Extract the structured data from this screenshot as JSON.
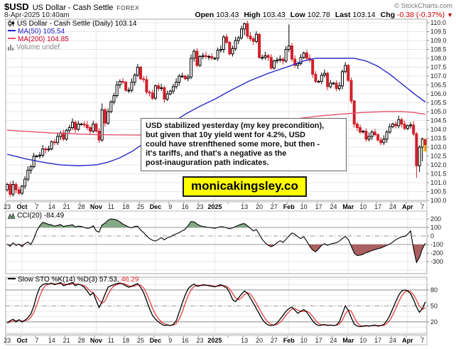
{
  "header": {
    "symbol": "$USD",
    "name": "US Dollar - Cash Settle",
    "exchange": "FOREX",
    "copyright": "© StockCharts.com",
    "datetime": "8-Apr-2025 10:40am",
    "open_label": "Open",
    "open": "103.43",
    "high_label": "High",
    "high": "103.43",
    "low_label": "Low",
    "low": "102.78",
    "last_label": "Last",
    "last": "103.14",
    "chg_label": "Chg",
    "chg": "-0.38 (-0.37%)",
    "chg_arrow": "▼"
  },
  "price_legend": {
    "title": "US Dollar - Cash Settle (Daily) 103.14",
    "ma50": "MA(50) 105.54",
    "ma200": "MA(200) 104.85",
    "volume": "Volume undef"
  },
  "cci_legend": {
    "text": "CCI(20) -84.49"
  },
  "sto_legend": {
    "black": "Slow STO %K(14) %D(3) 57.53,",
    "red": "46.29"
  },
  "annotation": {
    "lines": [
      "USD stabilized yesterday (my key precondition),",
      "but given that 10y yield went for 4.2%, USD",
      "could have strenfthened some more, but then -",
      "it's tariffs, and that's a negative as the",
      "post-inauguration path indicates."
    ]
  },
  "watermark": {
    "text": "monicakingsley.co"
  },
  "colors": {
    "candle_up": "#ffffff",
    "candle_down": "#d1202b",
    "ma50": "#2a2ac8",
    "ma50_text": "#2222cc",
    "ma200_line": "#e0556d",
    "ma200_text": "#cc0022",
    "cci_fill_above": "#85a885",
    "cci_fill_below": "#aa6060",
    "cci_line": "#000000",
    "sto_k": "#000000",
    "sto_d": "#e83030",
    "chg_negative": "#cc0000",
    "watermark_bg": "#ffff00",
    "last_bar_highlight": "#ffdd22",
    "grid": "#e7e7ec",
    "grid_strong": "#999999",
    "panel_border": "#aaaaaa",
    "axis_text": "#222222"
  },
  "chart_data": [
    {
      "type": "candlestick",
      "title": "US Dollar - Cash Settle (Daily)",
      "last_close": 103.14,
      "ylim": [
        100.0,
        110.0
      ],
      "ytick_step": 0.5,
      "first_open": 100.6,
      "x_week_labels": [
        {
          "w": 0,
          "t": "23"
        },
        {
          "w": 1,
          "t": "Oct",
          "b": 1
        },
        {
          "w": 2,
          "t": "7"
        },
        {
          "w": 3,
          "t": "14"
        },
        {
          "w": 4,
          "t": "21"
        },
        {
          "w": 5,
          "t": "28"
        },
        {
          "w": 6,
          "t": "Nov",
          "b": 1
        },
        {
          "w": 7,
          "t": "11"
        },
        {
          "w": 8,
          "t": "18"
        },
        {
          "w": 9,
          "t": "25"
        },
        {
          "w": 10,
          "t": "Dec",
          "b": 1
        },
        {
          "w": 11,
          "t": "9"
        },
        {
          "w": 12,
          "t": "16"
        },
        {
          "w": 13,
          "t": "23"
        },
        {
          "w": 14,
          "t": "2025",
          "b": 1
        },
        {
          "w": 16,
          "t": "13"
        },
        {
          "w": 17,
          "t": "20"
        },
        {
          "w": 18,
          "t": "27"
        },
        {
          "w": 19,
          "t": "Feb",
          "b": 1
        },
        {
          "w": 20,
          "t": "10"
        },
        {
          "w": 21,
          "t": "17"
        },
        {
          "w": 22,
          "t": "24"
        },
        {
          "w": 23,
          "t": "Mar",
          "b": 1
        },
        {
          "w": 24,
          "t": "10"
        },
        {
          "w": 25,
          "t": "17"
        },
        {
          "w": 26,
          "t": "24"
        },
        {
          "w": 27,
          "t": "Apr",
          "b": 1
        },
        {
          "w": 28,
          "t": "7"
        }
      ],
      "month_grid_weeks": [
        1,
        6,
        10,
        14,
        19,
        23,
        27
      ],
      "closes": [
        100.9,
        100.35,
        100.9,
        100.6,
        100.4,
        100.8,
        101.2,
        101.7,
        101.9,
        102.5,
        102.5,
        102.55,
        102.9,
        102.85,
        102.9,
        103.3,
        103.25,
        103.6,
        103.8,
        103.45,
        103.95,
        104.1,
        104.4,
        104.0,
        104.3,
        104.3,
        104.25,
        104.1,
        103.9,
        104.3,
        103.9,
        103.4,
        105.1,
        104.35,
        105.0,
        105.55,
        105.9,
        106.5,
        106.7,
        106.65,
        106.2,
        106.2,
        106.65,
        107.05,
        107.5,
        106.85,
        106.8,
        106.1,
        106.05,
        105.75,
        106.45,
        106.3,
        106.35,
        105.7,
        106.0,
        106.15,
        106.4,
        106.65,
        107.0,
        107.0,
        106.85,
        106.95,
        108.0,
        108.4,
        107.6,
        108.1,
        108.15,
        108.1,
        108.1,
        108.0,
        108.0,
        108.45,
        108.5,
        109.2,
        108.9,
        108.25,
        108.55,
        109.0,
        109.15,
        109.65,
        109.95,
        109.25,
        109.1,
        108.95,
        109.35,
        108.05,
        108.05,
        108.15,
        108.05,
        107.45,
        107.85,
        107.9,
        107.95,
        107.85,
        108.5,
        108.7,
        107.95,
        107.6,
        107.7,
        108.05,
        108.3,
        108.0,
        107.9,
        107.1,
        106.7,
        106.7,
        107.05,
        107.15,
        106.4,
        106.6,
        106.6,
        106.3,
        106.45,
        107.25,
        107.6,
        106.75,
        105.6,
        104.3,
        104.1,
        103.85,
        103.9,
        103.45,
        103.6,
        103.85,
        103.7,
        103.4,
        103.25,
        103.45,
        103.85,
        104.15,
        104.3,
        104.2,
        104.55,
        104.3,
        104.05,
        104.2,
        104.25,
        103.75,
        101.95,
        103.0,
        103.45,
        103.14
      ],
      "ohlc_overrides": {
        "32": [
          103.4,
          105.45,
          103.3,
          105.1
        ],
        "80": [
          109.65,
          110.0,
          109.3,
          109.95
        ],
        "95": [
          108.5,
          109.9,
          108.35,
          108.7
        ],
        "117": [
          105.6,
          105.65,
          104.1,
          104.3
        ],
        "138": [
          103.75,
          103.85,
          101.27,
          101.95
        ],
        "139": [
          101.95,
          103.1,
          101.6,
          103.0
        ],
        "140": [
          103.0,
          103.55,
          102.2,
          103.45
        ],
        "141": [
          103.43,
          103.43,
          102.78,
          103.14
        ]
      },
      "highlight_last_bar": true,
      "ma50_value": 105.54,
      "ma200_value": 104.85,
      "ma50_points": [
        [
          0,
          102.6
        ],
        [
          6,
          102.35
        ],
        [
          12,
          102.15
        ],
        [
          18,
          102.0
        ],
        [
          24,
          101.95
        ],
        [
          30,
          102.0
        ],
        [
          34,
          102.15
        ],
        [
          38,
          102.4
        ],
        [
          42,
          102.75
        ],
        [
          46,
          103.2
        ],
        [
          50,
          103.7
        ],
        [
          55,
          104.3
        ],
        [
          60,
          104.85
        ],
        [
          65,
          105.3
        ],
        [
          70,
          105.7
        ],
        [
          76,
          106.25
        ],
        [
          82,
          106.75
        ],
        [
          88,
          107.15
        ],
        [
          95,
          107.55
        ],
        [
          100,
          107.85
        ],
        [
          104,
          108.0
        ],
        [
          117,
          108.0
        ],
        [
          121,
          107.85
        ],
        [
          125,
          107.55
        ],
        [
          129,
          107.1
        ],
        [
          132,
          106.7
        ],
        [
          135,
          106.3
        ],
        [
          138,
          105.9
        ],
        [
          141,
          105.54
        ]
      ],
      "ma200_points": [
        [
          0,
          103.95
        ],
        [
          15,
          103.8
        ],
        [
          30,
          103.7
        ],
        [
          45,
          103.68
        ],
        [
          55,
          103.75
        ],
        [
          65,
          103.9
        ],
        [
          75,
          104.1
        ],
        [
          85,
          104.35
        ],
        [
          95,
          104.55
        ],
        [
          105,
          104.75
        ],
        [
          112,
          104.85
        ],
        [
          120,
          104.95
        ],
        [
          127,
          105.0
        ],
        [
          133,
          105.0
        ],
        [
          137,
          104.95
        ],
        [
          141,
          104.85
        ]
      ]
    },
    {
      "type": "line",
      "title": "CCI(20)",
      "last": -84.49,
      "yticks": [
        200,
        100,
        0,
        -100,
        -200,
        -300
      ],
      "band_levels": [
        100,
        -100
      ],
      "zero_level": 0,
      "values": [
        -95,
        -120,
        -80,
        -110,
        -95,
        -125,
        -90,
        -70,
        -100,
        -30,
        60,
        120,
        160,
        150,
        135,
        130,
        115,
        125,
        135,
        110,
        120,
        125,
        132,
        105,
        115,
        112,
        100,
        90,
        95,
        120,
        60,
        45,
        130,
        150,
        185,
        200,
        195,
        188,
        165,
        140,
        122,
        105,
        95,
        112,
        115,
        70,
        40,
        0,
        -30,
        -50,
        -60,
        -40,
        -20,
        -45,
        -20,
        -10,
        10,
        25,
        40,
        60,
        80,
        120,
        170,
        165,
        140,
        122,
        112,
        105,
        100,
        96,
        90,
        100,
        110,
        105,
        95,
        85,
        95,
        110,
        125,
        140,
        145,
        120,
        90,
        60,
        75,
        20,
        -40,
        -80,
        -110,
        -125,
        -110,
        -80,
        -55,
        -75,
        -40,
        0,
        35,
        20,
        -10,
        -30,
        -10,
        -60,
        -120,
        -165,
        -185,
        -150,
        -110,
        -90,
        -110,
        -95,
        -85,
        -80,
        -60,
        -30,
        -5,
        -40,
        -120,
        -200,
        -230,
        -225,
        -215,
        -195,
        -185,
        -170,
        -160,
        -150,
        -140,
        -125,
        -110,
        -95,
        -70,
        -45,
        -25,
        -10,
        -5,
        20,
        60,
        -150,
        -310,
        -250,
        -150,
        -84.49
      ]
    },
    {
      "type": "line",
      "title": "Slow STO %K(14) %D(3)",
      "k_last": 57.53,
      "d_last": 46.29,
      "d_smoothing": 3,
      "yticks": [
        80,
        50,
        20
      ],
      "band_levels": [
        80,
        20
      ],
      "mid_level": 50,
      "k_values": [
        18,
        22,
        25,
        20,
        24,
        20,
        23,
        28,
        35,
        50,
        70,
        85,
        90,
        92,
        91,
        93,
        90,
        92,
        94,
        88,
        90,
        92,
        94,
        88,
        91,
        89,
        85,
        78,
        70,
        75,
        60,
        47,
        58,
        72,
        85,
        88,
        90,
        92,
        93,
        91,
        88,
        85,
        87,
        90,
        92,
        85,
        75,
        60,
        45,
        32,
        25,
        20,
        16,
        13,
        14,
        13,
        15,
        22,
        38,
        55,
        70,
        82,
        88,
        91,
        87,
        88,
        90,
        89,
        88,
        87,
        86,
        88,
        90,
        87,
        84,
        75,
        62,
        58,
        65,
        72,
        78,
        74,
        65,
        55,
        45,
        35,
        25,
        18,
        14,
        13,
        14,
        18,
        25,
        32,
        40,
        45,
        48,
        42,
        36,
        40,
        43,
        38,
        30,
        22,
        16,
        13,
        14,
        15,
        13,
        14,
        13,
        14,
        20,
        35,
        50,
        42,
        28,
        16,
        12,
        11,
        12,
        13,
        12,
        13,
        14,
        12,
        13,
        15,
        22,
        32,
        45,
        58,
        70,
        78,
        80,
        78,
        73,
        62,
        48,
        38,
        45,
        57.53
      ]
    }
  ]
}
